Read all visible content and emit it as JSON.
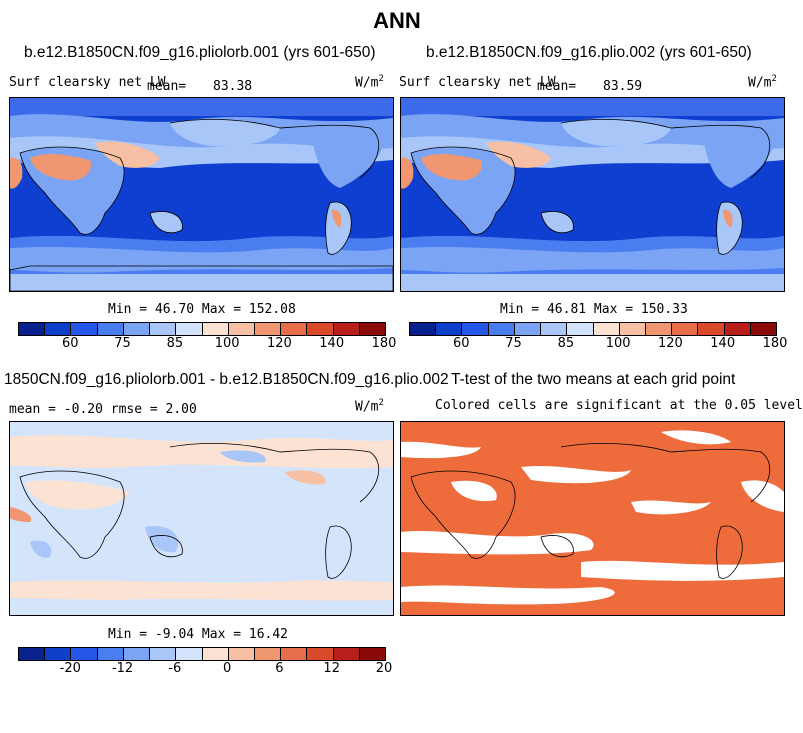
{
  "title": "ANN",
  "panels": {
    "p1": {
      "case": "b.e12.B1850CN.f09_g16.pliolorb.001 (yrs 601-650)",
      "field": "Surf clearsky net LW",
      "mean_label": "mean=",
      "mean_value": "83.38",
      "units": "W/m",
      "units_sup": "2",
      "stats": "Min =  46.70 Max = 152.08"
    },
    "p2": {
      "case": "b.e12.B1850CN.f09_g16.plio.002 (yrs 601-650)",
      "field": "Surf clearsky net LW",
      "mean_label": "mean=",
      "mean_value": "83.59",
      "units": "W/m",
      "units_sup": "2",
      "stats": "Min =  46.81 Max = 150.33"
    },
    "p3": {
      "case": "1850CN.f09_g16.pliolorb.001 - b.e12.B1850CN.f09_g16.plio.002",
      "stats_line": "mean =  -0.20    rmse =   2.00",
      "units": "W/m",
      "units_sup": "2",
      "stats": "Min =  -9.04 Max =  16.42"
    },
    "p4": {
      "title": "T-test of the two means at each grid point",
      "subtitle": "Colored cells are significant at the 0.05 level"
    }
  },
  "colorbar_main": {
    "colors": [
      "#08218c",
      "#0d3fc9",
      "#2457e8",
      "#4a7ef0",
      "#7ba4f5",
      "#a9c6f8",
      "#d2e3fb",
      "#fbe2d2",
      "#f7bfa3",
      "#f09670",
      "#e66e4a",
      "#d94a2b",
      "#b81f1a",
      "#8a0a0a"
    ],
    "labels": [
      "60",
      "75",
      "85",
      "100",
      "120",
      "140",
      "180"
    ]
  },
  "colorbar_diff": {
    "colors": [
      "#08218c",
      "#0d3fc9",
      "#2457e8",
      "#4a7ef0",
      "#7ba4f5",
      "#a9c6f8",
      "#d2e3fb",
      "#fbe2d2",
      "#f7bfa3",
      "#f09670",
      "#e66e4a",
      "#d94a2b",
      "#b81f1a",
      "#8a0a0a"
    ],
    "labels": [
      "-20",
      "-12",
      "-6",
      "0",
      "6",
      "12",
      "20"
    ]
  },
  "colors": {
    "ttest_fill": "#ee6c3c",
    "diff_background": "#d4e4fb",
    "main_background": "#0f3fd0"
  }
}
